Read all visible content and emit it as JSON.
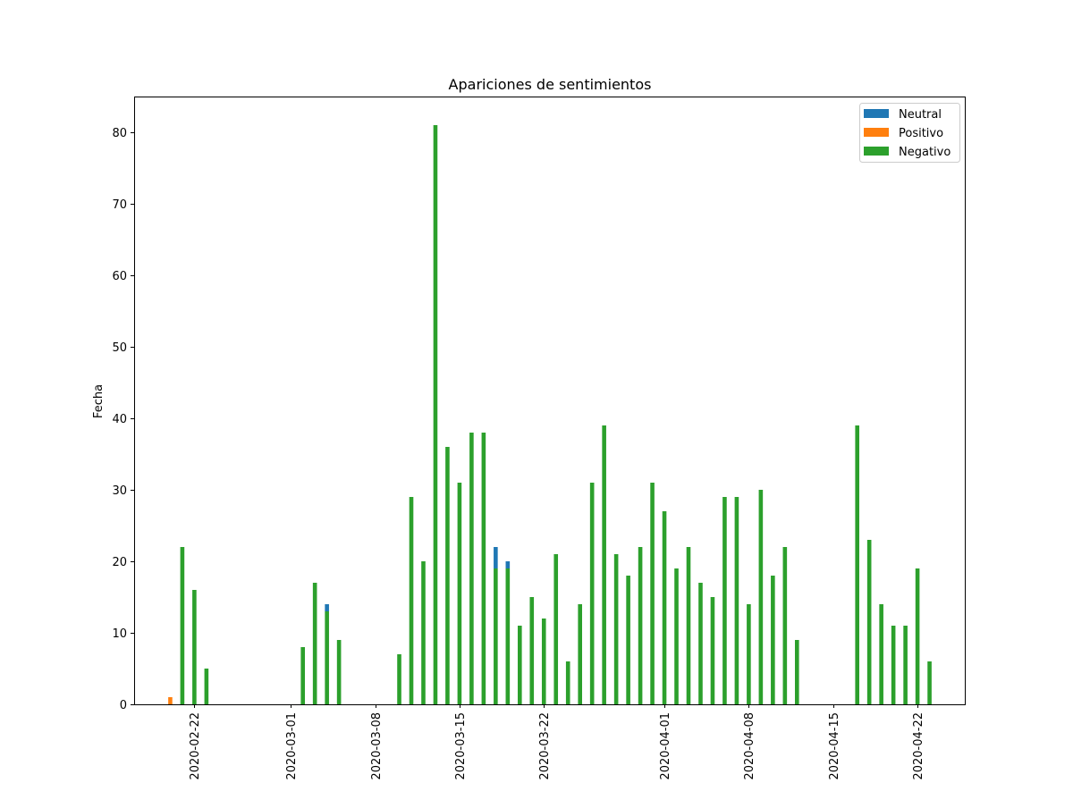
{
  "chart_data": {
    "type": "bar",
    "title": "Apariciones de sentimientos",
    "xlabel": "",
    "ylabel": "Fecha",
    "xlim": [
      "2020-02-17",
      "2020-04-26"
    ],
    "ylim": [
      0,
      85
    ],
    "y_ticks": [
      0,
      10,
      20,
      30,
      40,
      50,
      60,
      70,
      80
    ],
    "x_ticks": [
      "2020-02-22",
      "2020-03-01",
      "2020-03-08",
      "2020-03-15",
      "2020-03-22",
      "2020-04-01",
      "2020-04-08",
      "2020-04-15",
      "2020-04-22"
    ],
    "legend_position": "top-right",
    "grid": false,
    "series": [
      {
        "name": "Neutral",
        "color": "#1f77b4",
        "points": [
          {
            "x": "2020-03-04",
            "y": 1
          },
          {
            "x": "2020-03-18",
            "y": 3
          },
          {
            "x": "2020-03-19",
            "y": 1
          }
        ]
      },
      {
        "name": "Positivo",
        "color": "#ff7f0e",
        "points": [
          {
            "x": "2020-02-20",
            "y": 1
          }
        ]
      },
      {
        "name": "Negativo",
        "color": "#2ca02c",
        "points": [
          {
            "x": "2020-02-21",
            "y": 22
          },
          {
            "x": "2020-02-22",
            "y": 16
          },
          {
            "x": "2020-02-23",
            "y": 5
          },
          {
            "x": "2020-03-02",
            "y": 8
          },
          {
            "x": "2020-03-03",
            "y": 17
          },
          {
            "x": "2020-03-04",
            "y": 13
          },
          {
            "x": "2020-03-05",
            "y": 9
          },
          {
            "x": "2020-03-10",
            "y": 7
          },
          {
            "x": "2020-03-11",
            "y": 29
          },
          {
            "x": "2020-03-12",
            "y": 20
          },
          {
            "x": "2020-03-13",
            "y": 81
          },
          {
            "x": "2020-03-14",
            "y": 36
          },
          {
            "x": "2020-03-15",
            "y": 31
          },
          {
            "x": "2020-03-16",
            "y": 38
          },
          {
            "x": "2020-03-17",
            "y": 38
          },
          {
            "x": "2020-03-18",
            "y": 19
          },
          {
            "x": "2020-03-19",
            "y": 19
          },
          {
            "x": "2020-03-20",
            "y": 11
          },
          {
            "x": "2020-03-21",
            "y": 15
          },
          {
            "x": "2020-03-22",
            "y": 12
          },
          {
            "x": "2020-03-23",
            "y": 21
          },
          {
            "x": "2020-03-24",
            "y": 6
          },
          {
            "x": "2020-03-25",
            "y": 14
          },
          {
            "x": "2020-03-26",
            "y": 31
          },
          {
            "x": "2020-03-27",
            "y": 39
          },
          {
            "x": "2020-03-28",
            "y": 21
          },
          {
            "x": "2020-03-29",
            "y": 18
          },
          {
            "x": "2020-03-30",
            "y": 22
          },
          {
            "x": "2020-03-31",
            "y": 31
          },
          {
            "x": "2020-04-01",
            "y": 27
          },
          {
            "x": "2020-04-02",
            "y": 19
          },
          {
            "x": "2020-04-03",
            "y": 22
          },
          {
            "x": "2020-04-04",
            "y": 17
          },
          {
            "x": "2020-04-05",
            "y": 15
          },
          {
            "x": "2020-04-06",
            "y": 29
          },
          {
            "x": "2020-04-07",
            "y": 29
          },
          {
            "x": "2020-04-08",
            "y": 14
          },
          {
            "x": "2020-04-09",
            "y": 30
          },
          {
            "x": "2020-04-10",
            "y": 18
          },
          {
            "x": "2020-04-11",
            "y": 22
          },
          {
            "x": "2020-04-12",
            "y": 9
          },
          {
            "x": "2020-04-17",
            "y": 39
          },
          {
            "x": "2020-04-18",
            "y": 23
          },
          {
            "x": "2020-04-19",
            "y": 14
          },
          {
            "x": "2020-04-20",
            "y": 11
          },
          {
            "x": "2020-04-21",
            "y": 11
          },
          {
            "x": "2020-04-22",
            "y": 19
          },
          {
            "x": "2020-04-23",
            "y": 6
          }
        ]
      }
    ]
  }
}
